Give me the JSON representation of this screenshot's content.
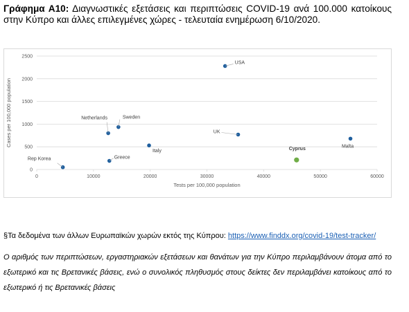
{
  "caption": {
    "label": "Γράφημα Α10:",
    "text": "Διαγνωστικές εξετάσεις και περιπτώσεις COVID-19 ανά 100.000 κατοίκους στην Κύπρο και άλλες επιλεγμένες χώρες - τελευταία ενημέρωση 6/10/2020."
  },
  "chart_data": {
    "type": "scatter",
    "xlabel": "Tests per 100,000 population",
    "ylabel": "Cases per 100,000 population",
    "xlim": [
      0,
      60000
    ],
    "ylim": [
      0,
      2500
    ],
    "xticks": [
      "0",
      "10000",
      "20000",
      "30000",
      "40000",
      "50000",
      "60000"
    ],
    "yticks": [
      "0",
      "500",
      "1000",
      "1500",
      "2000",
      "2500"
    ],
    "grid": "horizontal",
    "colors": {
      "default": "#1f5f9e",
      "highlight": "#70ad47",
      "grid": "#d9d9d9",
      "leader": "#a6a6a6"
    },
    "points": [
      {
        "label": "Rep Korea",
        "x": 4600,
        "y": 50
      },
      {
        "label": "Greece",
        "x": 12800,
        "y": 190
      },
      {
        "label": "Netherlands",
        "x": 12600,
        "y": 800
      },
      {
        "label": "Sweden",
        "x": 14400,
        "y": 935
      },
      {
        "label": "Italy",
        "x": 19800,
        "y": 530
      },
      {
        "label": "USA",
        "x": 33200,
        "y": 2280
      },
      {
        "label": "UK",
        "x": 35500,
        "y": 770
      },
      {
        "label": "Cyprus",
        "x": 45800,
        "y": 210,
        "highlight": true
      },
      {
        "label": "Malta",
        "x": 55300,
        "y": 680
      }
    ]
  },
  "footnote": {
    "text": "§Τα δεδομένα των άλλων Ευρωπαϊκών χωρών εκτός της Κύπρου: ",
    "link": "https://www.finddx.org/covid-19/test-tracker/"
  },
  "note": "Ο αριθμός των περιπτώσεων, εργαστηριακών εξετάσεων και θανάτων για την Κύπρο περιλαμβάνουν άτομα από το εξωτερικό και τις Βρετανικές βάσεις, ενώ ο συνολικός πληθυσμός στους δείκτες δεν περιλαμβάνει κατοίκους από το εξωτερικό ή τις Βρετανικές βάσεις"
}
